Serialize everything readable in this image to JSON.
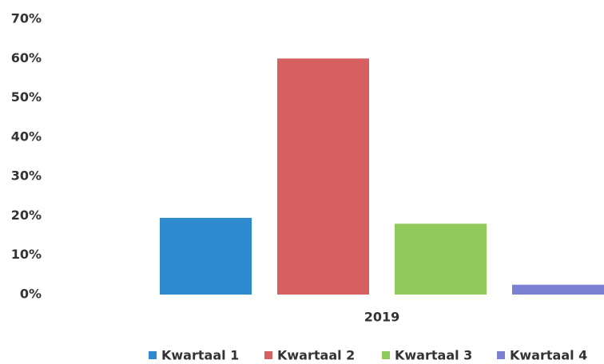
{
  "chart_data": {
    "type": "bar",
    "categories": [
      "2019"
    ],
    "series": [
      {
        "name": "Kwartaal 1",
        "color": "#2f8bcf",
        "values": [
          19.5
        ]
      },
      {
        "name": "Kwartaal 2",
        "color": "#d65f5f",
        "values": [
          60
        ]
      },
      {
        "name": "Kwartaal 3",
        "color": "#8fca5a",
        "values": [
          18
        ]
      },
      {
        "name": "Kwartaal 4",
        "color": "#7b80d2",
        "values": [
          2.5
        ]
      }
    ],
    "ylim": [
      0,
      70
    ],
    "yticks": [
      {
        "value": 0,
        "label": "0%"
      },
      {
        "value": 10,
        "label": "10%"
      },
      {
        "value": 20,
        "label": "20%"
      },
      {
        "value": 30,
        "label": "30%"
      },
      {
        "value": 40,
        "label": "40%"
      },
      {
        "value": 50,
        "label": "50%"
      },
      {
        "value": 60,
        "label": "60%"
      },
      {
        "value": 70,
        "label": "70%"
      }
    ],
    "grid": false,
    "legend": "bottom"
  }
}
